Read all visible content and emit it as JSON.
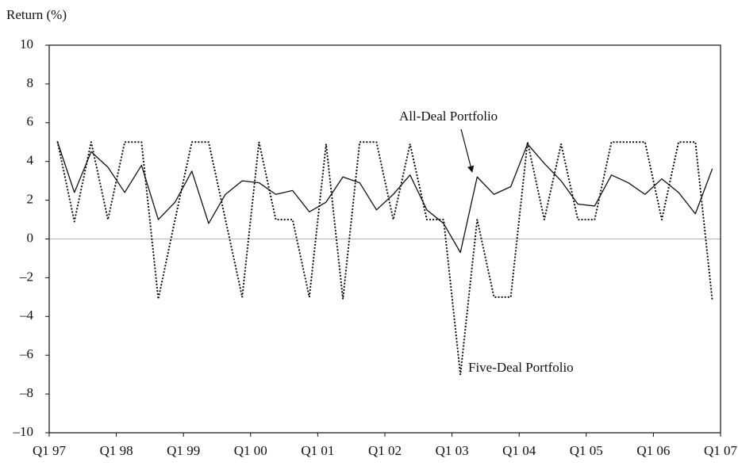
{
  "chart_data": {
    "type": "line",
    "y_label": "Return (%)",
    "x": [
      1997.125,
      1997.375,
      1997.625,
      1997.875,
      1998.125,
      1998.375,
      1998.625,
      1998.875,
      1999.125,
      1999.375,
      1999.625,
      1999.875,
      2000.125,
      2000.375,
      2000.625,
      2000.875,
      2001.125,
      2001.375,
      2001.625,
      2001.875,
      2002.125,
      2002.375,
      2002.625,
      2002.875,
      2003.125,
      2003.375,
      2003.625,
      2003.875,
      2004.125,
      2004.375,
      2004.625,
      2004.875,
      2005.125,
      2005.375,
      2005.625,
      2005.875,
      2006.125,
      2006.375,
      2006.625,
      2006.875
    ],
    "series": [
      {
        "name": "All-Deal Portfolio",
        "color": "#111111",
        "line_style": "solid",
        "values": [
          5.0,
          2.4,
          4.5,
          3.7,
          2.4,
          3.8,
          1.0,
          1.9,
          3.5,
          0.8,
          2.3,
          3.0,
          2.9,
          2.3,
          2.5,
          1.4,
          1.9,
          3.2,
          2.9,
          1.5,
          2.3,
          3.3,
          1.5,
          0.8,
          -0.7,
          3.2,
          2.3,
          2.7,
          4.9,
          3.9,
          3.0,
          1.8,
          1.7,
          3.3,
          2.9,
          2.3,
          3.1,
          2.4,
          1.3,
          3.6
        ]
      },
      {
        "name": "Five-Deal Portfolio",
        "color": "#111111",
        "line_style": "dotted",
        "values": [
          5.0,
          0.9,
          5.0,
          1.0,
          5.0,
          5.0,
          -3.1,
          1.0,
          5.0,
          5.0,
          1.0,
          -3.0,
          5.0,
          1.0,
          1.0,
          -3.0,
          4.9,
          -3.1,
          5.0,
          5.0,
          1.0,
          4.9,
          1.0,
          1.0,
          -7.0,
          1.0,
          -3.0,
          -3.0,
          5.0,
          1.0,
          4.9,
          1.0,
          1.0,
          5.0,
          5.0,
          5.0,
          1.0,
          5.0,
          5.0,
          -3.1
        ]
      }
    ],
    "xlim": [
      1997,
      2007
    ],
    "xticks": [
      {
        "value": 1997,
        "label": "Q1 97"
      },
      {
        "value": 1998,
        "label": "Q1 98"
      },
      {
        "value": 1999,
        "label": "Q1 99"
      },
      {
        "value": 2000,
        "label": "Q1 00"
      },
      {
        "value": 2001,
        "label": "Q1 01"
      },
      {
        "value": 2002,
        "label": "Q1 02"
      },
      {
        "value": 2003,
        "label": "Q1 03"
      },
      {
        "value": 2004,
        "label": "Q1 04"
      },
      {
        "value": 2005,
        "label": "Q1 05"
      },
      {
        "value": 2006,
        "label": "Q1 06"
      },
      {
        "value": 2007,
        "label": "Q1 07"
      }
    ],
    "ylim": [
      -10,
      10
    ],
    "yticks": [
      10,
      8,
      6,
      4,
      2,
      0,
      {
        "value": -2,
        "label": "–2"
      },
      {
        "value": -4,
        "label": "–4"
      },
      {
        "value": -6,
        "label": "–6"
      },
      {
        "value": -8,
        "label": "–8"
      },
      {
        "value": -10,
        "label": "–10"
      }
    ],
    "zero_line": true,
    "annotations": [
      {
        "text": "All-Deal Portfolio"
      },
      {
        "text": "Five-Deal Portfolio"
      }
    ]
  }
}
